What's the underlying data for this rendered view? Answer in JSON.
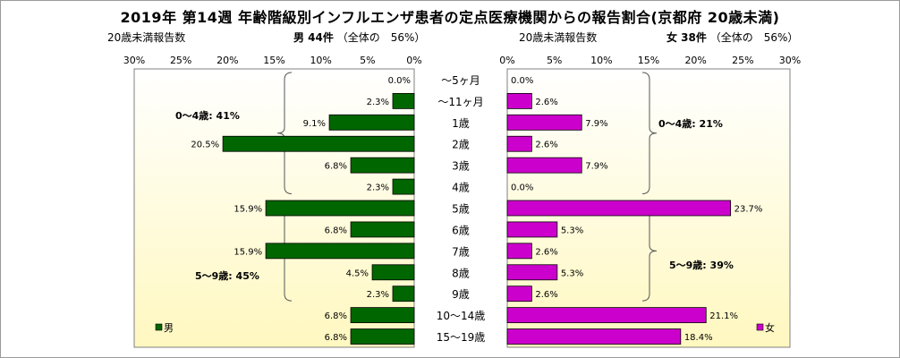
{
  "title": "2019年 第14週 年齢階級別インフルエンザ患者の定点医療機関からの報告割合(京都府 20歳未満)",
  "header": {
    "left_count_label": "20歳未満報告数",
    "male_count": "男 44件",
    "male_share": "（全体の　56%）",
    "right_count_label": "20歳未満報告数",
    "female_count": "女 38件",
    "female_share": "（全体の　56%）"
  },
  "chart_data": {
    "type": "bar",
    "categories": [
      "～5ヶ月",
      "～11ヶ月",
      "1歳",
      "2歳",
      "3歳",
      "4歳",
      "5歳",
      "6歳",
      "7歳",
      "8歳",
      "9歳",
      "10～14歳",
      "15～19歳"
    ],
    "series": [
      {
        "name": "男",
        "values": [
          0.0,
          2.3,
          9.1,
          20.5,
          6.8,
          2.3,
          15.9,
          6.8,
          15.9,
          4.5,
          2.3,
          6.8,
          6.8
        ],
        "color": "#006600"
      },
      {
        "name": "女",
        "values": [
          0.0,
          2.6,
          7.9,
          2.6,
          7.9,
          0.0,
          23.7,
          5.3,
          2.6,
          5.3,
          2.6,
          21.1,
          18.4
        ],
        "color": "#cc00cc"
      }
    ],
    "value_labels": {
      "male": [
        "0.0%",
        "2.3%",
        "9.1%",
        "20.5%",
        "6.8%",
        "2.3%",
        "15.9%",
        "6.8%",
        "15.9%",
        "4.5%",
        "2.3%",
        "6.8%",
        "6.8%"
      ],
      "female": [
        "0.0%",
        "2.6%",
        "7.9%",
        "2.6%",
        "7.9%",
        "0.0%",
        "23.7%",
        "5.3%",
        "2.6%",
        "5.3%",
        "2.6%",
        "21.1%",
        "18.4%"
      ]
    },
    "xlim": [
      0,
      30
    ],
    "left_ticks": [
      "30%",
      "25%",
      "20%",
      "15%",
      "10%",
      "5%",
      "0%"
    ],
    "right_ticks": [
      "0%",
      "5%",
      "10%",
      "15%",
      "20%",
      "25%",
      "30%"
    ],
    "group_annotations": {
      "male_0_4": "0～4歳: 41%",
      "male_5_9": "5～9歳: 45%",
      "female_0_4": "0～4歳: 21%",
      "female_5_9": "5～9歳: 39%"
    },
    "legend": {
      "male": "男",
      "female": "女"
    },
    "colors": {
      "male": "#006600",
      "female": "#cc00cc",
      "background_top": "#ffffff",
      "background_bottom": "#fff8c0"
    }
  }
}
